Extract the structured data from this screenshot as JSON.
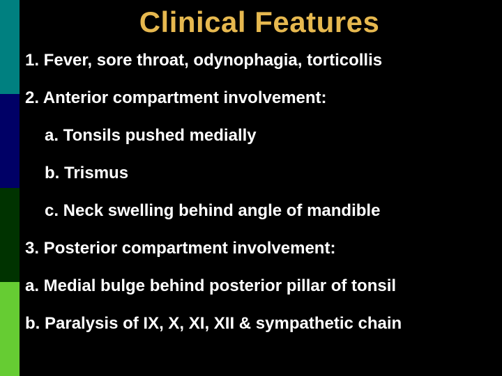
{
  "colors": {
    "background": "#000000",
    "title_color": "#e6b84f",
    "text_color": "#ffffff",
    "stripes": [
      "#008080",
      "#000066",
      "#003300",
      "#66cc33"
    ]
  },
  "typography": {
    "title_fontsize": 42,
    "title_weight": "bold",
    "body_fontsize": 24,
    "body_weight": "bold",
    "font_family": "Arial"
  },
  "title": "Clinical Features",
  "lines": {
    "l1": "1. Fever, sore throat, odynophagia, torticollis",
    "l2": "2. Anterior compartment involvement:",
    "l2a": "a. Tonsils pushed medially",
    "l2b": "b. Trismus",
    "l2c": "c. Neck swelling  behind angle of mandible",
    "l3": "3. Posterior compartment involvement:",
    "l3a": "a. Medial bulge behind posterior pillar of tonsil",
    "l3b": "b. Paralysis of IX, X, XI, XII & sympathetic chain"
  }
}
